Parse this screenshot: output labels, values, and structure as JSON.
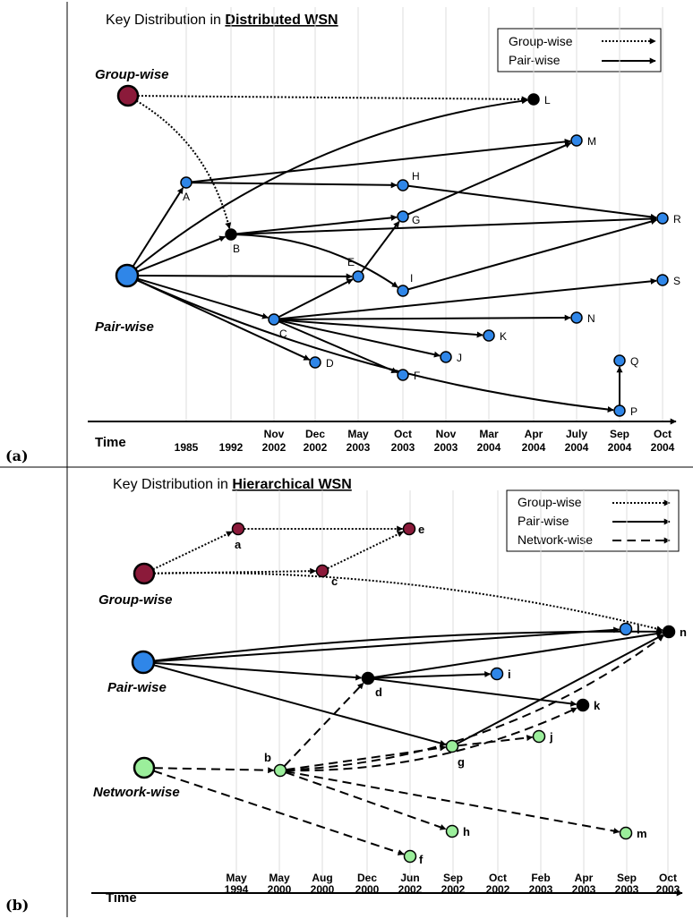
{
  "panel_a": {
    "tag": "(a)",
    "title_prefix": "Key Distribution in ",
    "title_emph": "Distributed WSN",
    "legend": [
      {
        "label": "Group-wise",
        "style": "dotted"
      },
      {
        "label": "Pair-wise",
        "style": "solid"
      }
    ],
    "roots": [
      {
        "id": "GW",
        "label": "Group-wise",
        "color": "#8B1A3A"
      },
      {
        "id": "PW",
        "label": "Pair-wise",
        "color": "#2F86E8"
      }
    ],
    "axis_label": "Time",
    "ticks": [
      {
        "l1": "",
        "l2": "1985"
      },
      {
        "l1": "",
        "l2": "1992"
      },
      {
        "l1": "Nov",
        "l2": "2002"
      },
      {
        "l1": "Dec",
        "l2": "2002"
      },
      {
        "l1": "May",
        "l2": "2003"
      },
      {
        "l1": "Oct",
        "l2": "2003"
      },
      {
        "l1": "Nov",
        "l2": "2003"
      },
      {
        "l1": "Mar",
        "l2": "2004"
      },
      {
        "l1": "Apr",
        "l2": "2004"
      },
      {
        "l1": "July",
        "l2": "2004"
      },
      {
        "l1": "Sep",
        "l2": "2004"
      },
      {
        "l1": "Oct",
        "l2": "2004"
      }
    ],
    "nodes": [
      {
        "id": "A",
        "label": "A",
        "color": "#2F86E8"
      },
      {
        "id": "B",
        "label": "B",
        "color": "#000000"
      },
      {
        "id": "C",
        "label": "C",
        "color": "#2F86E8"
      },
      {
        "id": "D",
        "label": "D",
        "color": "#2F86E8"
      },
      {
        "id": "E",
        "label": "E",
        "color": "#2F86E8"
      },
      {
        "id": "F",
        "label": "F",
        "color": "#2F86E8"
      },
      {
        "id": "G",
        "label": "G",
        "color": "#2F86E8"
      },
      {
        "id": "H",
        "label": "H",
        "color": "#2F86E8"
      },
      {
        "id": "I",
        "label": "I",
        "color": "#2F86E8"
      },
      {
        "id": "J",
        "label": "J",
        "color": "#2F86E8"
      },
      {
        "id": "K",
        "label": "K",
        "color": "#2F86E8"
      },
      {
        "id": "L",
        "label": "L",
        "color": "#000000"
      },
      {
        "id": "M",
        "label": "M",
        "color": "#2F86E8"
      },
      {
        "id": "N",
        "label": "N",
        "color": "#2F86E8"
      },
      {
        "id": "P",
        "label": "P",
        "color": "#2F86E8"
      },
      {
        "id": "Q",
        "label": "Q",
        "color": "#2F86E8"
      },
      {
        "id": "R",
        "label": "R",
        "color": "#2F86E8"
      },
      {
        "id": "S",
        "label": "S",
        "color": "#2F86E8"
      }
    ],
    "edges": [
      {
        "from": "GW",
        "to": "L",
        "style": "dotted"
      },
      {
        "from": "GW",
        "to": "B",
        "style": "dotted"
      },
      {
        "from": "PW",
        "to": "L",
        "style": "solid"
      },
      {
        "from": "PW",
        "to": "A",
        "style": "solid"
      },
      {
        "from": "PW",
        "to": "B",
        "style": "solid"
      },
      {
        "from": "PW",
        "to": "E",
        "style": "solid"
      },
      {
        "from": "PW",
        "to": "C",
        "style": "solid"
      },
      {
        "from": "PW",
        "to": "D",
        "style": "solid"
      },
      {
        "from": "PW",
        "to": "P",
        "style": "solid"
      },
      {
        "from": "A",
        "to": "M",
        "style": "solid"
      },
      {
        "from": "A",
        "to": "H",
        "style": "solid"
      },
      {
        "from": "H",
        "to": "R",
        "style": "solid"
      },
      {
        "from": "B",
        "to": "G",
        "style": "solid"
      },
      {
        "from": "B",
        "to": "R",
        "style": "solid"
      },
      {
        "from": "B",
        "to": "I",
        "style": "solid"
      },
      {
        "from": "G",
        "to": "M",
        "style": "solid"
      },
      {
        "from": "E",
        "to": "G",
        "style": "solid"
      },
      {
        "from": "C",
        "to": "E",
        "style": "solid"
      },
      {
        "from": "C",
        "to": "S",
        "style": "solid"
      },
      {
        "from": "C",
        "to": "N",
        "style": "solid"
      },
      {
        "from": "C",
        "to": "K",
        "style": "solid"
      },
      {
        "from": "C",
        "to": "J",
        "style": "solid"
      },
      {
        "from": "C",
        "to": "F",
        "style": "solid"
      },
      {
        "from": "I",
        "to": "R",
        "style": "solid"
      },
      {
        "from": "P",
        "to": "Q",
        "style": "solid"
      }
    ]
  },
  "panel_b": {
    "tag": "(b)",
    "title_prefix": "Key Distribution in ",
    "title_emph": "Hierarchical WSN",
    "legend": [
      {
        "label": "Group-wise",
        "style": "dotted"
      },
      {
        "label": "Pair-wise",
        "style": "solid"
      },
      {
        "label": "Network-wise",
        "style": "dashed"
      }
    ],
    "roots": [
      {
        "id": "GW",
        "label": "Group-wise",
        "color": "#8B1A3A"
      },
      {
        "id": "PW",
        "label": "Pair-wise",
        "color": "#2F86E8"
      },
      {
        "id": "NW",
        "label": "Network-wise",
        "color": "#9BEE9B"
      }
    ],
    "axis_label": "Time",
    "ticks": [
      {
        "l1": "May",
        "l2": "1994"
      },
      {
        "l1": "May",
        "l2": "2000"
      },
      {
        "l1": "Aug",
        "l2": "2000"
      },
      {
        "l1": "Dec",
        "l2": "2000"
      },
      {
        "l1": "Jun",
        "l2": "2002"
      },
      {
        "l1": "Sep",
        "l2": "2002"
      },
      {
        "l1": "Oct",
        "l2": "2002"
      },
      {
        "l1": "Feb",
        "l2": "2003"
      },
      {
        "l1": "Apr",
        "l2": "2003"
      },
      {
        "l1": "Sep",
        "l2": "2003"
      },
      {
        "l1": "Oct",
        "l2": "2003"
      }
    ],
    "nodes": [
      {
        "id": "a",
        "label": "a",
        "color": "#8B1A3A"
      },
      {
        "id": "b",
        "label": "b",
        "color": "#9BEE9B"
      },
      {
        "id": "c",
        "label": "c",
        "color": "#8B1A3A"
      },
      {
        "id": "d",
        "label": "d",
        "color": "#000000"
      },
      {
        "id": "e",
        "label": "e",
        "color": "#8B1A3A"
      },
      {
        "id": "f",
        "label": "f",
        "color": "#9BEE9B"
      },
      {
        "id": "g",
        "label": "g",
        "color": "#9BEE9B"
      },
      {
        "id": "h",
        "label": "h",
        "color": "#9BEE9B"
      },
      {
        "id": "i",
        "label": "i",
        "color": "#2F86E8"
      },
      {
        "id": "j",
        "label": "j",
        "color": "#9BEE9B"
      },
      {
        "id": "k",
        "label": "k",
        "color": "#000000"
      },
      {
        "id": "l",
        "label": "l",
        "color": "#2F86E8"
      },
      {
        "id": "m",
        "label": "m",
        "color": "#9BEE9B"
      },
      {
        "id": "n",
        "label": "n",
        "color": "#000000"
      }
    ],
    "edges": [
      {
        "from": "GW",
        "to": "a",
        "style": "dotted"
      },
      {
        "from": "GW",
        "to": "c",
        "style": "dotted"
      },
      {
        "from": "GW",
        "to": "n",
        "style": "dotted"
      },
      {
        "from": "a",
        "to": "e",
        "style": "dotted"
      },
      {
        "from": "c",
        "to": "e",
        "style": "dotted"
      },
      {
        "from": "PW",
        "to": "l",
        "style": "solid"
      },
      {
        "from": "PW",
        "to": "n",
        "style": "solid"
      },
      {
        "from": "PW",
        "to": "d",
        "style": "solid"
      },
      {
        "from": "PW",
        "to": "g",
        "style": "solid"
      },
      {
        "from": "d",
        "to": "n",
        "style": "solid"
      },
      {
        "from": "d",
        "to": "i",
        "style": "solid"
      },
      {
        "from": "d",
        "to": "k",
        "style": "solid"
      },
      {
        "from": "g",
        "to": "n",
        "style": "solid"
      },
      {
        "from": "NW",
        "to": "b",
        "style": "dashed"
      },
      {
        "from": "NW",
        "to": "f",
        "style": "dashed"
      },
      {
        "from": "b",
        "to": "d",
        "style": "dashed"
      },
      {
        "from": "b",
        "to": "g",
        "style": "dashed"
      },
      {
        "from": "b",
        "to": "h",
        "style": "dashed"
      },
      {
        "from": "b",
        "to": "m",
        "style": "dashed"
      },
      {
        "from": "b",
        "to": "k",
        "style": "dashed"
      },
      {
        "from": "b",
        "to": "n",
        "style": "dashed"
      },
      {
        "from": "g",
        "to": "j",
        "style": "dashed"
      }
    ]
  }
}
